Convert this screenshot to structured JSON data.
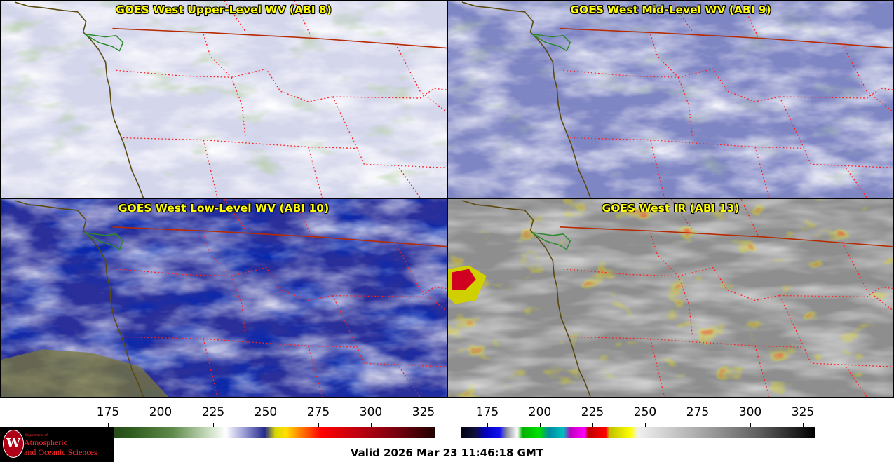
{
  "panels": [
    {
      "id": "upper",
      "title": "GOES West Upper-Level WV (ABI 8)"
    },
    {
      "id": "mid",
      "title": "GOES West Mid-Level WV (ABI 9)"
    },
    {
      "id": "low",
      "title": "GOES West Low-Level WV (ABI 10)"
    },
    {
      "id": "ir",
      "title": "GOES West IR (ABI 13)"
    }
  ],
  "colorbars": {
    "wv": {
      "ticks": [
        "175",
        "200",
        "225",
        "250",
        "275",
        "300",
        "325"
      ]
    },
    "ir": {
      "ticks": [
        "175",
        "200",
        "225",
        "250",
        "275",
        "300",
        "325"
      ]
    }
  },
  "footer": {
    "valid": "Valid 2026 Mar 23 11:46:18 GMT"
  },
  "logo": {
    "line1": "Department of",
    "line2": "Atmospheric",
    "line3": "and Oceanic Sciences",
    "icon": "uw-crest-icon"
  },
  "colors": {
    "title": "#ffff00",
    "border_political": "#cc1100",
    "coastline": "#5a4a10",
    "state_line": "#ff2020"
  }
}
